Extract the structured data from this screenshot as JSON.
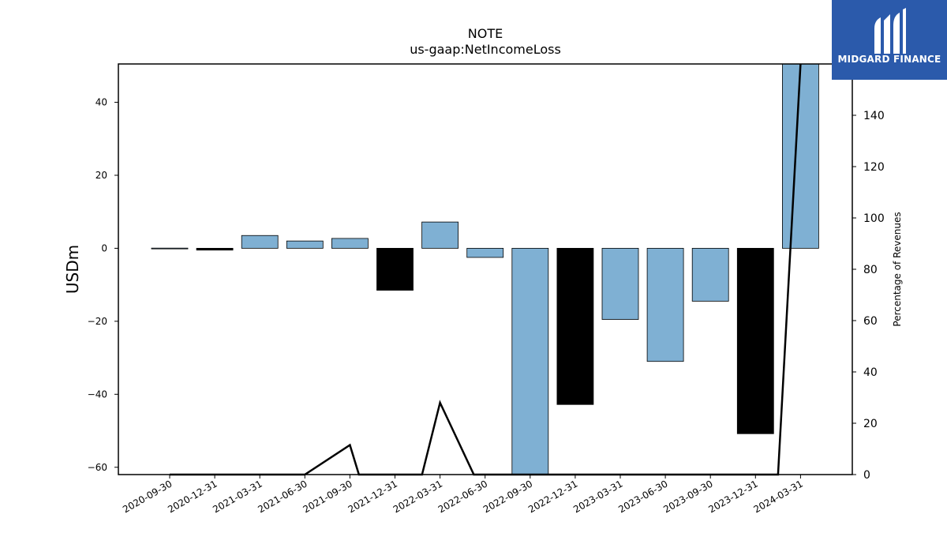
{
  "brand": {
    "name": "MIDGARD FINANCE",
    "bg_color": "#2b5aab"
  },
  "chart_data": {
    "type": "bar",
    "title": "NOTE",
    "subtitle": "us-gaap:NetIncomeLoss",
    "ylabel": "USDm",
    "y2label": "Percentage of Revenues",
    "ylim": [
      -62,
      50.5
    ],
    "y2lim": [
      0,
      160
    ],
    "yticks": [
      -60,
      -40,
      -20,
      0,
      20,
      40
    ],
    "y2ticks": [
      0,
      20,
      40,
      60,
      80,
      100,
      120,
      140
    ],
    "grid": false,
    "categories": [
      "2020-09-30",
      "2020-12-31",
      "2021-03-31",
      "2021-06-30",
      "2021-09-30",
      "2021-12-31",
      "2022-03-31",
      "2022-06-30",
      "2022-09-30",
      "2022-12-31",
      "2023-03-31",
      "2023-06-30",
      "2023-09-30",
      "2023-12-31",
      "2024-03-31"
    ],
    "series": [
      {
        "kind": "bar",
        "axis": "left",
        "values": [
          0.05,
          -0.5,
          3.5,
          2.0,
          2.7,
          -11.5,
          7.2,
          -2.5,
          -62.0,
          -42.8,
          -19.5,
          -31.0,
          -14.5,
          -50.8,
          50.5
        ],
        "colors": [
          "#7fb0d3",
          "#000000",
          "#7fb0d3",
          "#7fb0d3",
          "#7fb0d3",
          "#000000",
          "#7fb0d3",
          "#7fb0d3",
          "#7fb0d3",
          "#000000",
          "#7fb0d3",
          "#7fb0d3",
          "#7fb0d3",
          "#000000",
          "#7fb0d3"
        ]
      },
      {
        "kind": "line",
        "axis": "right",
        "points": [
          {
            "x": 0,
            "y": 0
          },
          {
            "x": 1,
            "y": 0
          },
          {
            "x": 2,
            "y": 0
          },
          {
            "x": 3,
            "y": 0
          },
          {
            "x": 4,
            "y": 11.5
          },
          {
            "x": 4.2,
            "y": 0
          },
          {
            "x": 5.6,
            "y": 0
          },
          {
            "x": 6,
            "y": 28
          },
          {
            "x": 6.75,
            "y": 0
          },
          {
            "x": 13.5,
            "y": 0
          },
          {
            "x": 14,
            "y": 160
          }
        ],
        "color": "#000000"
      }
    ]
  }
}
